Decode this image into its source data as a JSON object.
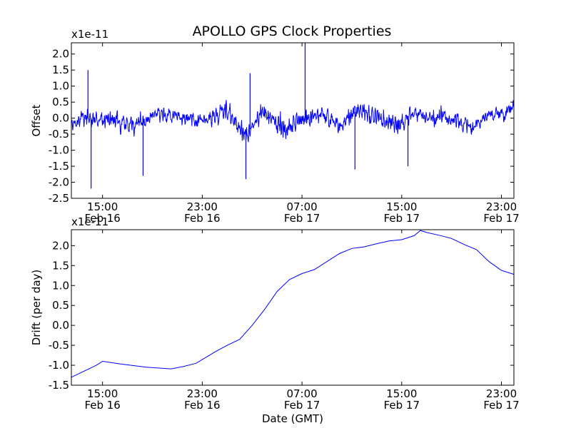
{
  "figure": {
    "title": "APOLLO GPS Clock Properties",
    "shared_xlabel": "Date (GMT)",
    "x_tick_labels": [
      {
        "time": "15:00",
        "date": "Feb 16"
      },
      {
        "time": "23:00",
        "date": "Feb 16"
      },
      {
        "time": "07:00",
        "date": "Feb 17"
      },
      {
        "time": "15:00",
        "date": "Feb 17"
      },
      {
        "time": "23:00",
        "date": "Feb 17"
      }
    ],
    "line_color": "#0000ff"
  },
  "chart_data": [
    {
      "type": "line",
      "name": "offset",
      "ylabel": "Offset",
      "y_multiplier": "x1e-11",
      "xlim": [
        "2010-02-16 12:30",
        "2010-02-18 00:00"
      ],
      "ylim": [
        -2.5,
        2.35
      ],
      "y_ticks": [
        -2.5,
        -2.0,
        -1.5,
        -1.0,
        -0.5,
        0.0,
        0.5,
        1.0,
        1.5,
        2.0
      ],
      "y_tick_labels": [
        "-2.5",
        "-2.0",
        "-1.5",
        "-1.0",
        "-0.5",
        "0.0",
        "0.5",
        "1.0",
        "1.5",
        "2.0"
      ],
      "x_ticks": [
        "2010-02-16 15:00",
        "2010-02-16 23:00",
        "2010-02-17 07:00",
        "2010-02-17 15:00",
        "2010-02-17 23:00"
      ],
      "grid": false,
      "noise_envelope": {
        "x": [
          "2010-02-16 12:30",
          "2010-02-16 14:00",
          "2010-02-16 15:30",
          "2010-02-16 17:30",
          "2010-02-16 19:30",
          "2010-02-16 21:30",
          "2010-02-16 23:30",
          "2010-02-17 01:00",
          "2010-02-17 02:30",
          "2010-02-17 04:00",
          "2010-02-17 05:30",
          "2010-02-17 07:00",
          "2010-02-17 08:30",
          "2010-02-17 10:00",
          "2010-02-17 11:30",
          "2010-02-17 13:00",
          "2010-02-17 14:30",
          "2010-02-17 16:00",
          "2010-02-17 17:30",
          "2010-02-17 19:00",
          "2010-02-17 20:30",
          "2010-02-17 22:00",
          "2010-02-17 23:30",
          "2010-02-18 00:00"
        ],
        "center": [
          -0.1,
          0.0,
          0.0,
          -0.2,
          0.2,
          0.0,
          0.0,
          0.2,
          -0.5,
          0.2,
          -0.4,
          0.0,
          0.2,
          -0.3,
          0.3,
          0.0,
          -0.2,
          0.2,
          0.0,
          0.0,
          -0.3,
          0.1,
          0.2,
          0.5
        ],
        "amplitude": [
          0.5,
          0.5,
          0.6,
          0.6,
          0.5,
          0.5,
          0.5,
          0.6,
          0.6,
          0.6,
          0.7,
          0.6,
          0.6,
          0.6,
          0.6,
          0.6,
          0.6,
          0.5,
          0.5,
          0.5,
          0.5,
          0.4,
          0.4,
          0.4
        ]
      },
      "spikes": [
        {
          "x": "2010-02-16 13:50",
          "y": 1.5
        },
        {
          "x": "2010-02-16 14:05",
          "y": -2.2
        },
        {
          "x": "2010-02-16 18:15",
          "y": -1.8
        },
        {
          "x": "2010-02-17 02:30",
          "y": -1.9
        },
        {
          "x": "2010-02-17 02:50",
          "y": 1.4
        },
        {
          "x": "2010-02-17 07:15",
          "y": 2.35
        },
        {
          "x": "2010-02-17 11:15",
          "y": -1.6
        },
        {
          "x": "2010-02-17 15:30",
          "y": -1.5
        }
      ]
    },
    {
      "type": "line",
      "name": "drift",
      "ylabel": "Drift (per day)",
      "y_multiplier": "x1e-11",
      "xlim": [
        "2010-02-16 12:30",
        "2010-02-18 00:00"
      ],
      "ylim": [
        -1.5,
        2.4
      ],
      "y_ticks": [
        -1.5,
        -1.0,
        -0.5,
        0.0,
        0.5,
        1.0,
        1.5,
        2.0
      ],
      "y_tick_labels": [
        "-1.5",
        "-1.0",
        "-0.5",
        "0.0",
        "0.5",
        "1.0",
        "1.5",
        "2.0"
      ],
      "x_ticks": [
        "2010-02-16 15:00",
        "2010-02-16 23:00",
        "2010-02-17 07:00",
        "2010-02-17 15:00",
        "2010-02-17 23:00"
      ],
      "grid": false,
      "x": [
        "2010-02-16 12:30",
        "2010-02-16 13:30",
        "2010-02-16 14:30",
        "2010-02-16 15:00",
        "2010-02-16 16:30",
        "2010-02-16 18:30",
        "2010-02-16 20:30",
        "2010-02-16 21:30",
        "2010-02-16 22:30",
        "2010-02-17 00:00",
        "2010-02-17 01:00",
        "2010-02-17 02:00",
        "2010-02-17 03:00",
        "2010-02-17 04:00",
        "2010-02-17 05:00",
        "2010-02-17 06:00",
        "2010-02-17 07:00",
        "2010-02-17 08:00",
        "2010-02-17 09:00",
        "2010-02-17 10:00",
        "2010-02-17 11:00",
        "2010-02-17 12:00",
        "2010-02-17 13:00",
        "2010-02-17 14:00",
        "2010-02-17 15:00",
        "2010-02-17 16:00",
        "2010-02-17 16:30",
        "2010-02-17 17:00",
        "2010-02-17 18:00",
        "2010-02-17 19:00",
        "2010-02-17 20:00",
        "2010-02-17 21:00",
        "2010-02-17 22:00",
        "2010-02-17 23:00",
        "2010-02-18 00:00"
      ],
      "y": [
        -1.3,
        -1.15,
        -1.0,
        -0.9,
        -0.97,
        -1.05,
        -1.09,
        -1.03,
        -0.95,
        -0.67,
        -0.5,
        -0.35,
        0.0,
        0.4,
        0.85,
        1.15,
        1.3,
        1.4,
        1.6,
        1.8,
        1.93,
        1.97,
        2.05,
        2.12,
        2.15,
        2.25,
        2.38,
        2.33,
        2.26,
        2.18,
        2.03,
        1.9,
        1.6,
        1.38,
        1.28
      ]
    }
  ]
}
